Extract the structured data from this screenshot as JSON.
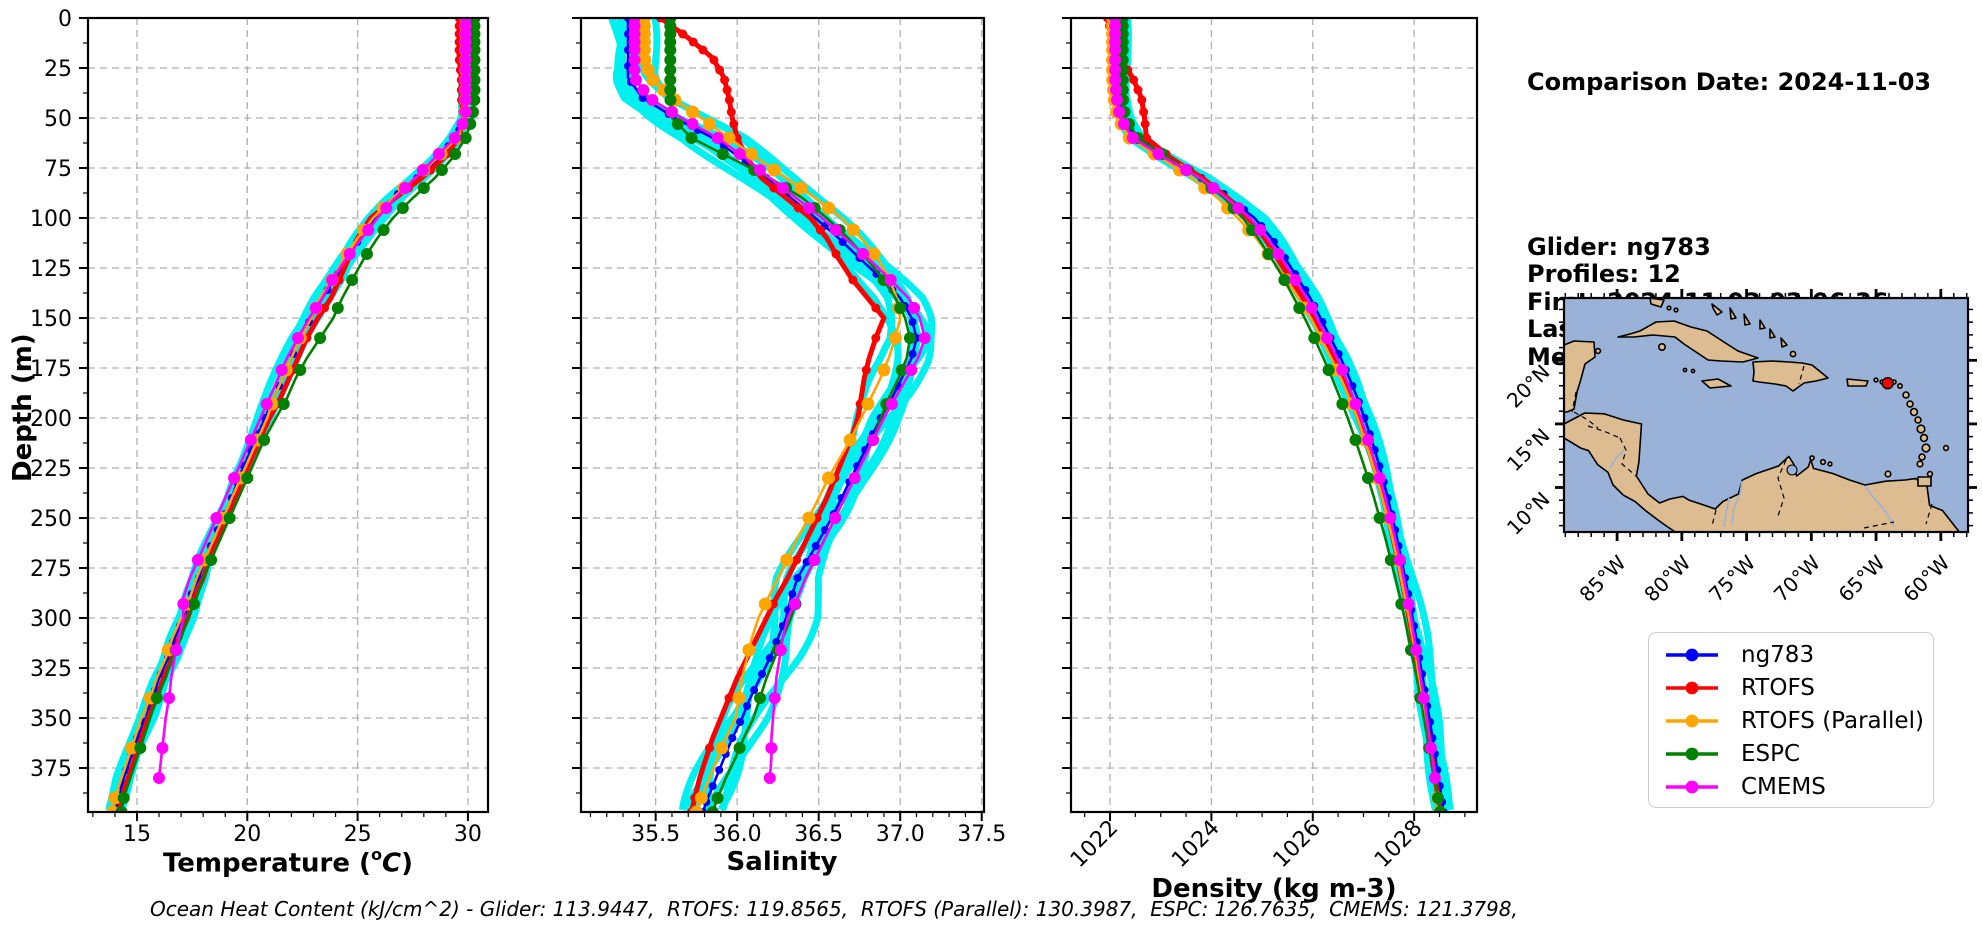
{
  "info_panel": {
    "comparison_date": "Comparison Date: 2024-11-03",
    "lines": [
      "Glider: ng783",
      "Profiles: 12",
      "First: 2024-11-03 03:06:36",
      "Last: 2024-11-03 23:00:35",
      "Method: Nearest-Neighbor"
    ]
  },
  "footer_text": "Ocean Heat Content (kJ/cm^2) - Glider: 113.9447,  RTOFS: 119.8565,  RTOFS (Parallel): 130.3987,  ESPC: 126.7635,  CMEMS: 121.3798,",
  "legend": {
    "items": [
      {
        "label": "ng783",
        "color": "#0000FF"
      },
      {
        "label": "RTOFS",
        "color": "#FF0000"
      },
      {
        "label": "RTOFS (Parallel)",
        "color": "#FFA500"
      },
      {
        "label": "ESPC",
        "color": "#008000"
      },
      {
        "label": "CMEMS",
        "color": "#FF00FF"
      }
    ]
  },
  "axis_titles": {
    "temperature": {
      "pre": "Temperature (",
      "sup": "o",
      "var": "C",
      "post": ")"
    },
    "salinity": "Salinity",
    "density": "Density (kg m-3)",
    "depth": "Depth (m)"
  },
  "depth_axis": {
    "label": "Depth (m)",
    "domain": [
      0,
      397
    ],
    "ticks": [
      0,
      25,
      50,
      75,
      100,
      125,
      150,
      175,
      200,
      225,
      250,
      275,
      300,
      325,
      350,
      375
    ],
    "tick_labels": [
      "0",
      "25",
      "50",
      "75",
      "100",
      "125",
      "150",
      "175",
      "200",
      "225",
      "250",
      "275",
      "300",
      "325",
      "350",
      "375"
    ],
    "minor_step": 12.5
  },
  "chart_data": [
    {
      "key": "temperature",
      "type": "line",
      "xlabel": "Temperature (°C)",
      "ylabel": "Depth (m)",
      "x_domain": [
        12.78,
        30.91
      ],
      "x_ticks": {
        "values": [
          15,
          20,
          25,
          30
        ],
        "labels": [
          "15",
          "20",
          "25",
          "30"
        ]
      },
      "x_minor_step": 1,
      "rotate_x_labels": false,
      "grid": true,
      "legend_position": "outside-right"
    },
    {
      "key": "salinity",
      "type": "line",
      "xlabel": "Salinity",
      "ylabel": "Depth (m)",
      "x_domain": [
        35.042,
        37.514
      ],
      "x_ticks": {
        "values": [
          35.5,
          36.0,
          36.5,
          37.0,
          37.5
        ],
        "labels": [
          "35.5",
          "36.0",
          "36.5",
          "37.0",
          "37.5"
        ]
      },
      "x_minor_step": 0.1,
      "rotate_x_labels": false,
      "grid": true
    },
    {
      "key": "density",
      "type": "line",
      "xlabel": "Density (kg m-3)",
      "ylabel": "Depth (m)",
      "x_domain": [
        1021.23,
        1029.24
      ],
      "x_ticks": {
        "values": [
          1022,
          1024,
          1026,
          1028
        ],
        "labels": [
          "1022",
          "1024",
          "1026",
          "1028"
        ]
      },
      "x_minor_step": 0.5,
      "rotate_x_labels": true,
      "grid": true
    }
  ],
  "series": [
    {
      "key": "ng783",
      "label": "ng783",
      "color": "#0000FF",
      "line_width": 2.6,
      "marker_r": 4.0,
      "marker": "dense"
    },
    {
      "key": "RTOFS",
      "label": "RTOFS",
      "color": "#FF0000",
      "line_width": 5.0,
      "marker_r": 4.5,
      "marker": "levels"
    },
    {
      "key": "RTOFS_Parallel",
      "label": "RTOFS (Parallel)",
      "color": "#FFA500",
      "line_width": 2.6,
      "marker_r": 6.5,
      "marker": "levels"
    },
    {
      "key": "ESPC",
      "label": "ESPC",
      "color": "#008000",
      "line_width": 2.6,
      "marker_r": 6.0,
      "marker": "levels"
    },
    {
      "key": "CMEMS",
      "label": "CMEMS",
      "color": "#FF00FF",
      "line_width": 2.6,
      "marker_r": 6.0,
      "marker": "levels"
    }
  ],
  "glider_raw": {
    "color": "#00F0F0",
    "profiles": 7,
    "line_width": 7,
    "jitter": {
      "temperature": 0.24,
      "salinity": 0.1,
      "density": 0.12
    }
  },
  "profiles": {
    "depths": [
      0,
      10,
      20,
      30,
      40,
      50,
      60,
      70,
      80,
      90,
      100,
      110,
      120,
      130,
      140,
      150,
      160,
      170,
      180,
      190,
      200,
      210,
      220,
      230,
      240,
      250,
      260,
      270,
      280,
      290,
      300,
      310,
      320,
      330,
      340,
      350,
      360,
      370,
      380,
      390,
      397
    ],
    "temperature": {
      "ng783": [
        29.9,
        29.9,
        29.9,
        29.9,
        29.9,
        29.9,
        29.4,
        28.7,
        27.7,
        26.6,
        25.8,
        25.1,
        24.5,
        24.0,
        23.4,
        22.9,
        22.4,
        22.0,
        21.6,
        21.2,
        20.8,
        20.4,
        20.0,
        19.6,
        19.3,
        18.9,
        18.5,
        18.1,
        17.8,
        17.4,
        17.1,
        16.7,
        16.4,
        16.0,
        15.7,
        15.4,
        15.0,
        14.7,
        14.4,
        14.2,
        14.0
      ],
      "RTOFS": [
        29.6,
        29.6,
        29.6,
        29.7,
        29.7,
        29.8,
        29.6,
        28.9,
        27.9,
        26.7,
        25.6,
        25.0,
        24.6,
        24.2,
        23.8,
        23.2,
        22.7,
        22.3,
        21.9,
        21.5,
        21.0,
        20.6,
        20.2,
        19.8,
        19.5,
        19.1,
        18.7,
        18.3,
        18.0,
        17.6,
        17.3,
        16.9,
        16.6,
        16.2,
        15.9,
        15.5,
        15.2,
        14.9,
        14.6,
        14.3,
        14.2
      ],
      "RTOFS_Parallel": [
        29.9,
        29.9,
        29.9,
        29.9,
        29.9,
        29.9,
        29.5,
        28.6,
        27.6,
        26.6,
        25.7,
        25.0,
        24.4,
        23.9,
        23.3,
        22.9,
        22.4,
        22.0,
        21.6,
        21.2,
        20.9,
        20.5,
        20.1,
        19.7,
        19.3,
        18.9,
        18.5,
        18.1,
        17.7,
        17.4,
        17.0,
        16.6,
        16.3,
        15.9,
        15.6,
        15.2,
        14.9,
        14.6,
        14.3,
        14.0,
        13.9
      ],
      "ESPC": [
        30.3,
        30.3,
        30.3,
        30.3,
        30.3,
        30.2,
        29.9,
        29.3,
        28.5,
        27.5,
        26.6,
        25.9,
        25.3,
        24.8,
        24.3,
        23.9,
        23.3,
        22.7,
        22.2,
        21.8,
        21.3,
        20.8,
        20.4,
        20.0,
        19.6,
        19.2,
        18.8,
        18.4,
        18.0,
        17.7,
        17.3,
        17.0,
        16.6,
        16.3,
        15.9,
        15.6,
        15.3,
        15.0,
        14.7,
        14.4,
        14.3
      ],
      "CMEMS": [
        29.9,
        29.9,
        29.9,
        29.9,
        29.9,
        29.9,
        29.4,
        28.5,
        27.6,
        26.7,
        25.9,
        25.2,
        24.5,
        23.9,
        23.4,
        22.8,
        22.3,
        21.8,
        21.4,
        21.0,
        20.6,
        20.2,
        19.8,
        19.4,
        19.0,
        18.6,
        18.2,
        17.8,
        17.4,
        17.1,
        17.1,
        16.9,
        16.7,
        16.55,
        16.45,
        16.3,
        16.2,
        16.1,
        16.0,
        null,
        null
      ]
    },
    "salinity": {
      "ng783": [
        35.33,
        35.33,
        35.33,
        35.33,
        35.42,
        35.62,
        35.85,
        36.02,
        36.18,
        36.33,
        36.48,
        36.62,
        36.75,
        36.88,
        37.0,
        37.07,
        37.1,
        37.07,
        37.01,
        36.95,
        36.88,
        36.82,
        36.76,
        36.7,
        36.64,
        36.58,
        36.51,
        36.44,
        36.37,
        36.33,
        36.3,
        36.25,
        36.2,
        36.14,
        36.08,
        36.03,
        35.97,
        35.92,
        35.87,
        35.82,
        35.79
      ],
      "RTOFS": [
        35.53,
        35.7,
        35.85,
        35.92,
        35.95,
        35.97,
        36.0,
        36.06,
        36.15,
        36.3,
        36.45,
        36.55,
        36.62,
        36.7,
        36.8,
        36.9,
        36.85,
        36.81,
        36.78,
        36.76,
        36.74,
        36.7,
        36.65,
        36.6,
        36.55,
        36.49,
        36.43,
        36.37,
        36.31,
        36.24,
        36.18,
        36.12,
        36.06,
        36.0,
        35.95,
        35.9,
        35.85,
        35.81,
        35.77,
        35.74,
        35.72
      ],
      "RTOFS_Parallel": [
        35.43,
        35.43,
        35.43,
        35.47,
        35.6,
        35.78,
        35.95,
        36.12,
        36.3,
        36.48,
        36.64,
        36.76,
        36.86,
        36.93,
        36.98,
        37.0,
        36.97,
        36.93,
        36.88,
        36.82,
        36.76,
        36.7,
        36.63,
        36.56,
        36.5,
        36.44,
        36.37,
        36.31,
        36.25,
        36.19,
        36.13,
        36.09,
        36.06,
        36.03,
        36.01,
        35.99,
        35.93,
        35.88,
        35.83,
        35.78,
        35.75
      ],
      "ESPC": [
        35.59,
        35.59,
        35.59,
        35.59,
        35.59,
        35.6,
        35.72,
        35.96,
        36.2,
        36.4,
        36.55,
        36.68,
        36.79,
        36.89,
        36.97,
        37.03,
        37.06,
        37.04,
        36.99,
        36.93,
        36.88,
        36.84,
        36.78,
        36.72,
        36.66,
        36.6,
        36.54,
        36.48,
        36.42,
        36.37,
        36.33,
        36.28,
        36.23,
        36.18,
        36.14,
        36.1,
        36.04,
        35.99,
        35.93,
        35.88,
        35.85
      ],
      "CMEMS": [
        35.37,
        35.37,
        35.37,
        35.37,
        35.46,
        35.66,
        35.88,
        36.05,
        36.2,
        36.36,
        36.52,
        36.66,
        36.8,
        36.93,
        37.05,
        37.12,
        37.15,
        37.11,
        37.04,
        36.97,
        36.9,
        36.84,
        36.78,
        36.72,
        36.66,
        36.6,
        36.54,
        36.48,
        36.42,
        36.37,
        36.31,
        36.28,
        36.26,
        36.24,
        36.23,
        36.22,
        36.21,
        36.21,
        36.2,
        null,
        null
      ]
    },
    "density": {
      "ng783": [
        1022.15,
        1022.15,
        1022.15,
        1022.15,
        1022.18,
        1022.25,
        1022.5,
        1023.1,
        1023.8,
        1024.35,
        1024.85,
        1025.18,
        1025.45,
        1025.7,
        1025.95,
        1026.15,
        1026.35,
        1026.55,
        1026.72,
        1026.88,
        1027.02,
        1027.15,
        1027.27,
        1027.38,
        1027.48,
        1027.57,
        1027.66,
        1027.74,
        1027.82,
        1027.9,
        1027.97,
        1028.04,
        1028.1,
        1028.17,
        1028.23,
        1028.3,
        1028.36,
        1028.42,
        1028.48,
        1028.54,
        1028.58
      ],
      "RTOFS": [
        1021.95,
        1022.05,
        1022.2,
        1022.45,
        1022.62,
        1022.68,
        1022.72,
        1023.2,
        1023.82,
        1024.32,
        1024.72,
        1025.05,
        1025.3,
        1025.55,
        1025.8,
        1026.0,
        1026.2,
        1026.4,
        1026.58,
        1026.75,
        1026.9,
        1027.03,
        1027.16,
        1027.28,
        1027.39,
        1027.49,
        1027.58,
        1027.67,
        1027.75,
        1027.83,
        1027.9,
        1027.97,
        1028.04,
        1028.1,
        1028.17,
        1028.23,
        1028.29,
        1028.35,
        1028.41,
        1028.47,
        1028.51
      ],
      "RTOFS_Parallel": [
        1022.05,
        1022.05,
        1022.05,
        1022.05,
        1022.08,
        1022.15,
        1022.38,
        1023.0,
        1023.62,
        1024.12,
        1024.52,
        1024.88,
        1025.18,
        1025.46,
        1025.72,
        1025.96,
        1026.16,
        1026.36,
        1026.55,
        1026.72,
        1026.88,
        1027.01,
        1027.14,
        1027.26,
        1027.37,
        1027.47,
        1027.57,
        1027.66,
        1027.74,
        1027.82,
        1027.9,
        1027.97,
        1028.04,
        1028.1,
        1028.16,
        1028.22,
        1028.28,
        1028.34,
        1028.4,
        1028.46,
        1028.5
      ],
      "ESPC": [
        1022.25,
        1022.25,
        1022.25,
        1022.25,
        1022.25,
        1022.3,
        1022.55,
        1023.15,
        1023.75,
        1024.25,
        1024.62,
        1024.92,
        1025.18,
        1025.42,
        1025.63,
        1025.84,
        1026.03,
        1026.21,
        1026.38,
        1026.54,
        1026.69,
        1026.83,
        1026.96,
        1027.09,
        1027.21,
        1027.32,
        1027.43,
        1027.53,
        1027.63,
        1027.72,
        1027.81,
        1027.89,
        1027.97,
        1028.05,
        1028.12,
        1028.19,
        1028.26,
        1028.33,
        1028.4,
        1028.47,
        1028.51
      ],
      "CMEMS": [
        1022.1,
        1022.1,
        1022.1,
        1022.1,
        1022.13,
        1022.2,
        1022.45,
        1023.08,
        1023.78,
        1024.3,
        1024.76,
        1025.1,
        1025.38,
        1025.63,
        1025.88,
        1026.08,
        1026.28,
        1026.48,
        1026.65,
        1026.8,
        1026.95,
        1027.08,
        1027.2,
        1027.32,
        1027.43,
        1027.53,
        1027.62,
        1027.71,
        1027.79,
        1027.87,
        1027.94,
        1028.0,
        1028.07,
        1028.13,
        1028.19,
        1028.25,
        1028.3,
        1028.36,
        1028.41,
        null,
        null
      ]
    }
  },
  "map": {
    "water_color": "#9AB2D8",
    "land_color": "#DCBC90",
    "extent": {
      "lon": [
        -89.1,
        -57.9
      ],
      "lat": [
        6.5,
        24.9
      ]
    },
    "lat_ticks": {
      "values": [
        20,
        15,
        10
      ],
      "labels": [
        "20°N",
        "15°N",
        "10°N"
      ]
    },
    "lon_ticks": {
      "values": [
        -85,
        -80,
        -75,
        -70,
        -65,
        -60
      ],
      "labels": [
        "85°W",
        "80°W",
        "75°W",
        "70°W",
        "65°W",
        "60°W"
      ]
    },
    "marker": {
      "lon": -64.1,
      "lat": 18.2,
      "color": "#FF0000",
      "name": "glider-location"
    }
  }
}
